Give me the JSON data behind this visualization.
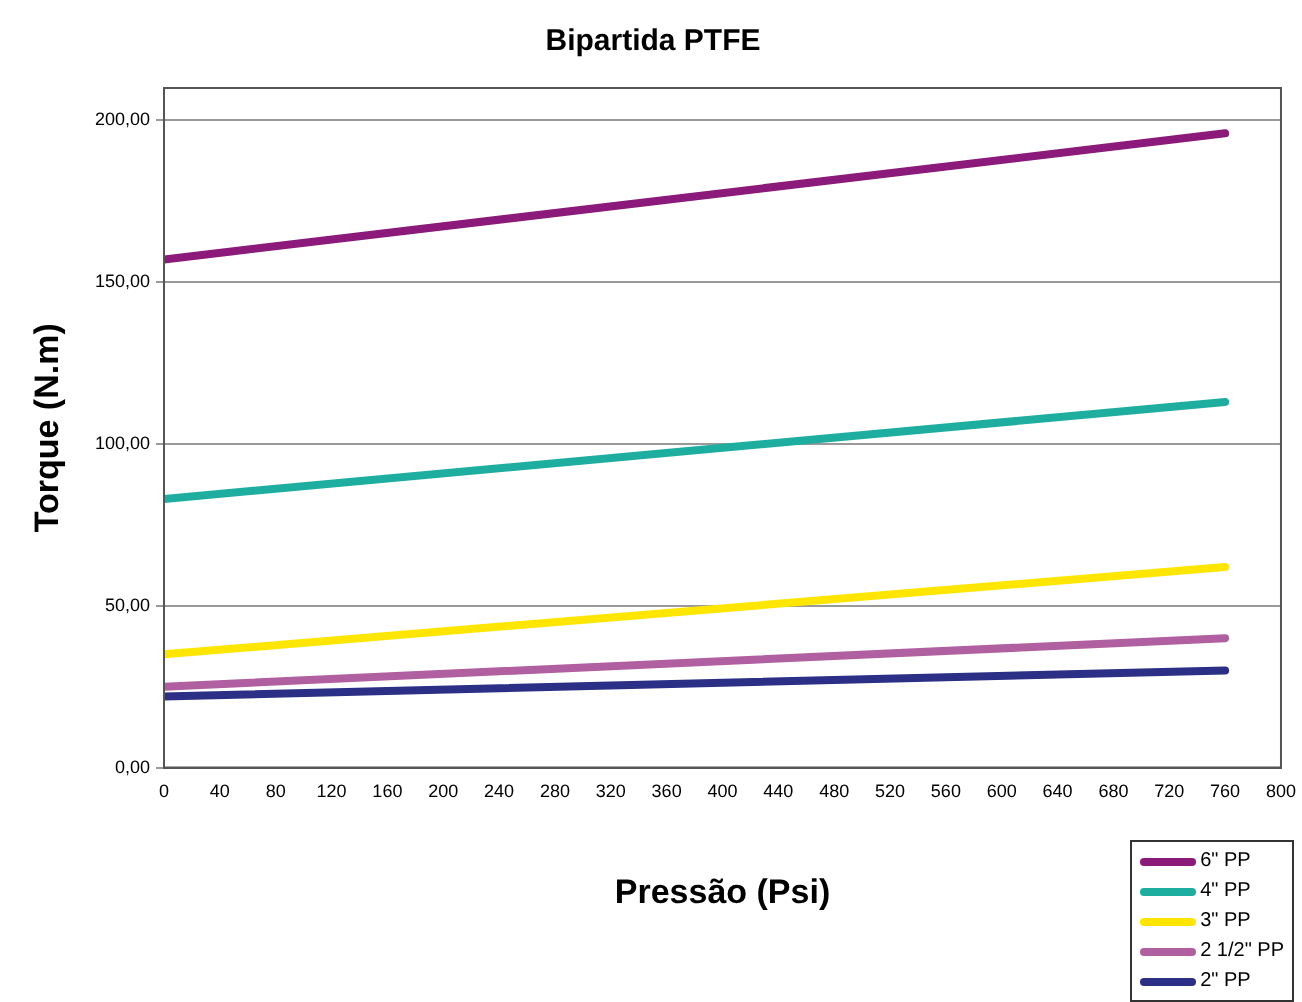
{
  "chart_data": {
    "type": "line",
    "title": "Bipartida PTFE",
    "xlabel": "Pressão (Psi)",
    "ylabel": "Torque (N.m)",
    "x": [
      0,
      760
    ],
    "series": [
      {
        "name": "6\" PP",
        "color": "#8b1a7a",
        "values": [
          157,
          196
        ]
      },
      {
        "name": "4\" PP",
        "color": "#1eaea0",
        "values": [
          83,
          113
        ]
      },
      {
        "name": "3\" PP",
        "color": "#ffe600",
        "values": [
          35,
          62
        ]
      },
      {
        "name": "2 1/2\" PP",
        "color": "#b05fa0",
        "values": [
          25,
          40
        ]
      },
      {
        "name": "2\" PP",
        "color": "#2b2f85",
        "values": [
          22,
          30
        ]
      }
    ],
    "xlim": [
      0,
      800
    ],
    "xticks": [
      0,
      40,
      80,
      120,
      160,
      200,
      240,
      280,
      320,
      360,
      400,
      440,
      480,
      520,
      560,
      600,
      640,
      680,
      720,
      760,
      800
    ],
    "ylim": [
      0,
      210
    ],
    "yticks": [
      {
        "value": 0,
        "label": "0,00"
      },
      {
        "value": 50,
        "label": "50,00"
      },
      {
        "value": 100,
        "label": "100,00"
      },
      {
        "value": 150,
        "label": "150,00"
      },
      {
        "value": 200,
        "label": "200,00"
      }
    ],
    "grid": "y",
    "legend": "bottom right",
    "marker": "none",
    "line_style": "solid"
  }
}
